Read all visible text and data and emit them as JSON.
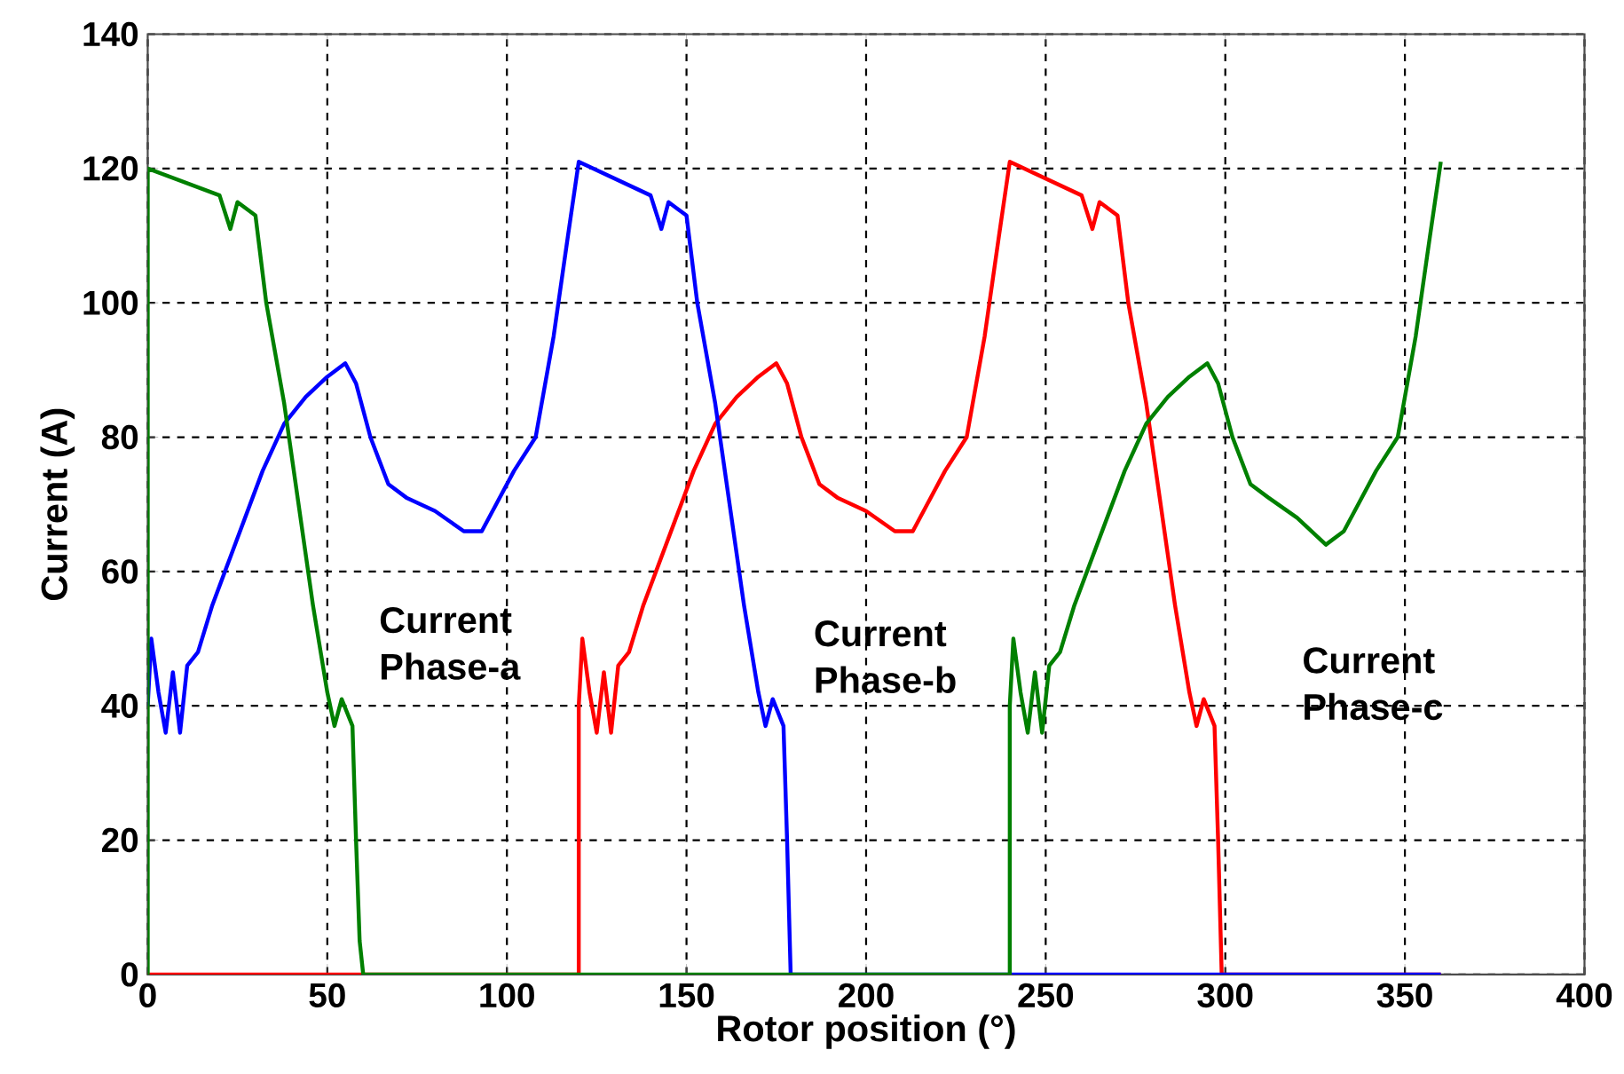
{
  "chart_data": {
    "type": "line",
    "xlabel": "Rotor position (°)",
    "ylabel": "Current (A)",
    "xlim": [
      0,
      400
    ],
    "xticks": [
      0,
      50,
      100,
      150,
      200,
      250,
      300,
      350,
      400
    ],
    "ylim": [
      0,
      140
    ],
    "yticks": [
      0,
      20,
      40,
      60,
      80,
      100,
      120,
      140
    ],
    "grid": true,
    "marker": "none",
    "line_style": "solid",
    "annotations": [
      "Current Phase-a",
      "Current Phase-b",
      "Current Phase-c"
    ],
    "series": [
      {
        "color": "#ff0000",
        "x": [
          0,
          120,
          120,
          121,
          123,
          125,
          127,
          129,
          131,
          134,
          138,
          145,
          152,
          158,
          164,
          170,
          175,
          178,
          182,
          187,
          192,
          200,
          208,
          213,
          217,
          222,
          228,
          233,
          237,
          240,
          260,
          263,
          265,
          270,
          273,
          278,
          282,
          286,
          290,
          292,
          294,
          297,
          298,
          299,
          300,
          360
        ],
        "values": [
          0,
          0,
          40,
          50,
          42,
          36,
          45,
          36,
          46,
          48,
          55,
          65,
          75,
          82,
          86,
          89,
          91,
          88,
          80,
          73,
          71,
          69,
          66,
          66,
          70,
          75,
          80,
          95,
          110,
          121,
          116,
          111,
          115,
          113,
          100,
          85,
          70,
          55,
          42,
          37,
          41,
          37,
          20,
          0,
          0,
          0
        ]
      },
      {
        "color": "#0000ff",
        "x": [
          0,
          1,
          3,
          5,
          7,
          9,
          11,
          14,
          18,
          25,
          32,
          38,
          44,
          50,
          55,
          58,
          62,
          67,
          72,
          80,
          88,
          93,
          97,
          102,
          108,
          113,
          117,
          120,
          140,
          143,
          145,
          150,
          153,
          158,
          162,
          166,
          170,
          172,
          174,
          177,
          178,
          179,
          360
        ],
        "values": [
          40,
          50,
          42,
          36,
          45,
          36,
          46,
          48,
          55,
          65,
          75,
          82,
          86,
          89,
          91,
          88,
          80,
          73,
          71,
          69,
          66,
          66,
          70,
          75,
          80,
          95,
          110,
          121,
          116,
          111,
          115,
          113,
          100,
          85,
          70,
          55,
          42,
          37,
          41,
          37,
          20,
          0,
          0
        ]
      },
      {
        "color": "#008000",
        "x": [
          0,
          0,
          20,
          23,
          25,
          30,
          33,
          38,
          42,
          46,
          50,
          52,
          54,
          57,
          58,
          59,
          60,
          240,
          240,
          241,
          243,
          245,
          247,
          249,
          251,
          254,
          258,
          265,
          272,
          278,
          284,
          290,
          295,
          298,
          302,
          307,
          312,
          320,
          328,
          333,
          337,
          342,
          348,
          353,
          357,
          360
        ],
        "values": [
          0,
          120,
          116,
          111,
          115,
          113,
          100,
          85,
          70,
          55,
          42,
          37,
          41,
          37,
          20,
          5,
          0,
          0,
          40,
          50,
          42,
          36,
          45,
          36,
          46,
          48,
          55,
          65,
          75,
          82,
          86,
          89,
          91,
          88,
          80,
          73,
          71,
          68,
          64,
          66,
          70,
          75,
          80,
          95,
          110,
          121
        ]
      }
    ]
  }
}
